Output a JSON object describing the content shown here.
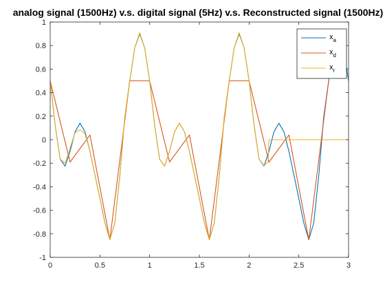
{
  "chart_data": {
    "type": "line",
    "title": "analog signal (1500Hz) v.s. digital signal (5Hz) v.s. Reconstructed signal (1500Hz)",
    "xlabel": "",
    "ylabel": "",
    "xlim": [
      0,
      3
    ],
    "ylim": [
      -1,
      1
    ],
    "xticks": [
      "0",
      "0.5",
      "1",
      "1.5",
      "2",
      "2.5",
      "3"
    ],
    "yticks": [
      "-1",
      "-0.8",
      "-0.6",
      "-0.4",
      "-0.2",
      "0",
      "0.2",
      "0.4",
      "0.6",
      "0.8",
      "1"
    ],
    "grid": false,
    "legend_position": "top-right",
    "series": [
      {
        "name": "x_a",
        "legend_base": "x",
        "legend_sub": "a",
        "color": "#0072BD",
        "x": [
          0,
          0.05,
          0.1,
          0.15,
          0.2,
          0.25,
          0.3,
          0.35,
          0.4,
          0.45,
          0.5,
          0.55,
          0.6,
          0.65,
          0.7,
          0.75,
          0.8,
          0.85,
          0.9,
          0.95,
          1.0,
          1.05,
          1.1,
          1.15,
          1.2,
          1.25,
          1.3,
          1.35,
          1.4,
          1.45,
          1.5,
          1.55,
          1.6,
          1.65,
          1.7,
          1.75,
          1.8,
          1.85,
          1.9,
          1.95,
          2.0,
          2.05,
          2.1,
          2.15,
          2.2,
          2.25,
          2.3,
          2.35,
          2.4,
          2.45,
          2.5,
          2.55,
          2.6,
          2.65,
          2.7,
          2.75,
          2.8,
          2.85,
          2.9,
          2.95,
          3.0
        ],
        "y": [
          0.5,
          0.124,
          -0.165,
          -0.225,
          -0.099,
          0.067,
          0.14,
          0.067,
          -0.099,
          -0.298,
          -0.5,
          -0.707,
          -0.85,
          -0.707,
          -0.309,
          0.191,
          0.5,
          0.78,
          0.9,
          0.78,
          0.5,
          0.124,
          -0.165,
          -0.225,
          -0.099,
          0.067,
          0.14,
          0.067,
          -0.099,
          -0.298,
          -0.5,
          -0.707,
          -0.85,
          -0.707,
          -0.309,
          0.191,
          0.5,
          0.78,
          0.9,
          0.78,
          0.5,
          0.124,
          -0.165,
          -0.225,
          -0.099,
          0.067,
          0.14,
          0.067,
          -0.099,
          -0.298,
          -0.5,
          -0.707,
          -0.85,
          -0.707,
          -0.309,
          0.191,
          0.5,
          0.78,
          0.9,
          0.78,
          0.5
        ]
      },
      {
        "name": "x_d",
        "legend_base": "x",
        "legend_sub": "d",
        "color": "#D95319",
        "x": [
          0,
          0.2,
          0.4,
          0.6,
          0.8,
          1.0,
          1.2,
          1.4,
          1.6,
          1.8,
          2.0,
          2.2,
          2.4,
          2.6,
          2.8
        ],
        "y": [
          0.5,
          -0.19,
          0.04,
          -0.85,
          0.5,
          0.5,
          -0.19,
          0.04,
          -0.85,
          0.5,
          0.5,
          -0.19,
          0.04,
          -0.85,
          0.5
        ]
      },
      {
        "name": "x_r",
        "legend_base": "x",
        "legend_sub": "r",
        "color": "#EDB120",
        "x": [
          0,
          0.05,
          0.1,
          0.15,
          0.2,
          0.25,
          0.3,
          0.35,
          0.4,
          0.45,
          0.5,
          0.55,
          0.6,
          0.65,
          0.7,
          0.75,
          0.8,
          0.85,
          0.9,
          0.95,
          1.0,
          1.05,
          1.1,
          1.15,
          1.2,
          1.25,
          1.3,
          1.35,
          1.4,
          1.45,
          1.5,
          1.55,
          1.6,
          1.65,
          1.7,
          1.75,
          1.8,
          1.85,
          1.9,
          1.95,
          2.0,
          2.05,
          2.1,
          2.15,
          2.19,
          2.2,
          2.5,
          2.8,
          3.0
        ],
        "y": [
          0.5,
          0.12,
          -0.165,
          -0.2,
          -0.07,
          0.06,
          0.085,
          0.05,
          -0.099,
          -0.298,
          -0.5,
          -0.707,
          -0.85,
          -0.707,
          -0.309,
          0.191,
          0.5,
          0.78,
          0.91,
          0.78,
          0.5,
          0.124,
          -0.165,
          -0.225,
          -0.099,
          0.067,
          0.14,
          0.067,
          -0.099,
          -0.298,
          -0.5,
          -0.707,
          -0.85,
          -0.707,
          -0.309,
          0.191,
          0.5,
          0.78,
          0.91,
          0.78,
          0.5,
          0.12,
          -0.165,
          -0.22,
          -0.19,
          0.0,
          0.0,
          0.0,
          0.0
        ]
      }
    ]
  }
}
